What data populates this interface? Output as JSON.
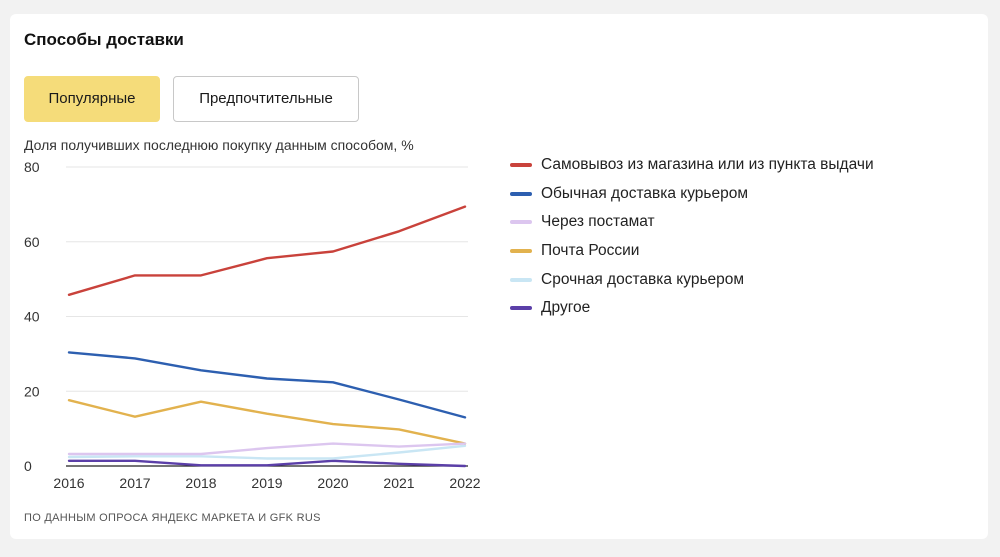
{
  "card": {
    "title": "Способы доставки",
    "tabs": [
      {
        "label": "Популярные",
        "active": true
      },
      {
        "label": "Предпочтительные",
        "active": false
      }
    ],
    "source_note": "ПО ДАННЫМ ОПРОСА ЯНДЕКС МАРКЕТА И GFK RUS"
  },
  "colors": {
    "accent_tab": "#f5dc7a",
    "grid": "#e6e6e6"
  },
  "chart_data": {
    "type": "line",
    "title": "",
    "ylabel": "Доля получивших последнюю покупку данным способом, %",
    "xlabel": "",
    "x": [
      2016,
      2017,
      2018,
      2019,
      2020,
      2021,
      2022
    ],
    "xticks": [
      "2016",
      "2017",
      "2018",
      "2019",
      "2020",
      "2021",
      "2022"
    ],
    "ylim": [
      0,
      80
    ],
    "yticks": [
      0,
      20,
      40,
      60,
      80
    ],
    "grid": true,
    "legend_position": "right",
    "series": [
      {
        "name": "Самовывоз из магазина или из пункта выдачи",
        "color": "#c9423b",
        "values": [
          45.8,
          51,
          51,
          55.6,
          57.4,
          62.8,
          69.4
        ]
      },
      {
        "name": "Обычная доставка курьером",
        "color": "#2d5fb0",
        "values": [
          30.4,
          28.8,
          25.6,
          23.4,
          22.4,
          17.8,
          13
        ]
      },
      {
        "name": "Через постамат",
        "color": "#dcc6ef",
        "values": [
          3.2,
          3.2,
          3.2,
          4.8,
          6,
          5.2,
          6
        ]
      },
      {
        "name": "Почта России",
        "color": "#e2b24e",
        "values": [
          17.6,
          13.2,
          17.2,
          14,
          11.2,
          9.8,
          6
        ]
      },
      {
        "name": "Срочная доставка курьером",
        "color": "#c9e6f4",
        "values": [
          2.4,
          2.6,
          2.6,
          2,
          2,
          3.6,
          5.4
        ]
      },
      {
        "name": "Другое",
        "color": "#5b3fa8",
        "values": [
          1.4,
          1.4,
          0.2,
          0.2,
          1.4,
          0.6,
          0
        ]
      }
    ]
  }
}
